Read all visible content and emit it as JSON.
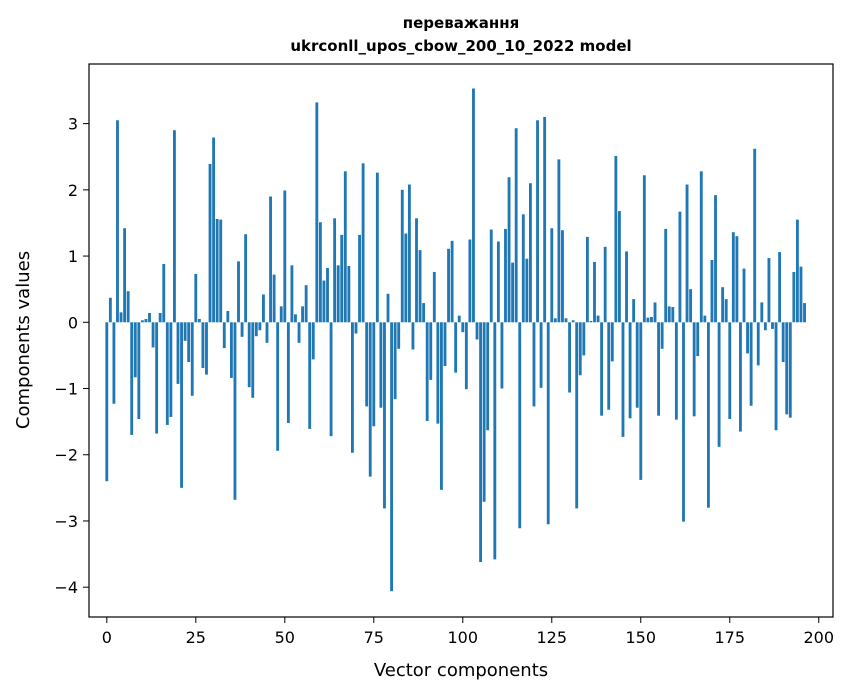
{
  "chart_data": {
    "type": "bar",
    "title_line1": "переважання",
    "title_line2": "ukrconll_upos_cbow_200_10_2022 model",
    "xlabel": "Vector components",
    "ylabel": "Components values",
    "xlim": [
      -5,
      204
    ],
    "ylim": [
      -4.45,
      3.9
    ],
    "xticks": [
      0,
      25,
      50,
      75,
      100,
      125,
      150,
      175,
      200
    ],
    "xtick_labels": [
      "0",
      "25",
      "50",
      "75",
      "100",
      "125",
      "150",
      "175",
      "200"
    ],
    "yticks": [
      -4,
      -3,
      -2,
      -1,
      0,
      1,
      2,
      3
    ],
    "ytick_labels": [
      "−4",
      "−3",
      "−2",
      "−1",
      "0",
      "1",
      "2",
      "3"
    ],
    "bar_color": "#1f77b4",
    "grid": false,
    "values": [
      -2.4,
      0.37,
      -1.23,
      3.05,
      0.15,
      1.42,
      0.47,
      -1.7,
      -0.83,
      -1.46,
      0.03,
      0.05,
      0.14,
      -0.38,
      -1.68,
      0.14,
      0.88,
      -1.55,
      -1.43,
      2.9,
      -0.93,
      -2.5,
      -0.28,
      -0.6,
      -1.11,
      0.73,
      0.05,
      -0.69,
      -0.79,
      2.39,
      2.79,
      1.56,
      1.55,
      -0.39,
      0.17,
      -0.84,
      -2.68,
      0.92,
      -0.22,
      1.33,
      -0.98,
      -1.14,
      -0.21,
      -0.12,
      0.42,
      -0.31,
      1.9,
      0.72,
      -1.94,
      0.24,
      1.99,
      -1.52,
      0.86,
      0.12,
      -0.31,
      0.24,
      0.56,
      -1.61,
      -0.56,
      3.32,
      1.51,
      0.63,
      0.82,
      -1.72,
      1.57,
      0.86,
      1.32,
      2.28,
      0.85,
      -1.97,
      -0.17,
      1.32,
      2.4,
      -1.27,
      -2.33,
      -1.57,
      2.26,
      -1.29,
      -2.81,
      0.43,
      -4.06,
      -1.16,
      -0.4,
      2.0,
      1.34,
      2.08,
      -0.41,
      1.57,
      1.09,
      0.29,
      -1.49,
      -0.87,
      0.76,
      -1.53,
      -2.53,
      -0.66,
      1.11,
      1.23,
      -0.76,
      0.1,
      -0.15,
      -1.01,
      1.25,
      3.53,
      -0.26,
      -3.62,
      -2.71,
      -1.63,
      1.4,
      -3.58,
      1.22,
      -1.0,
      1.41,
      2.19,
      0.9,
      2.93,
      -3.11,
      1.63,
      0.96,
      2.1,
      -1.27,
      3.05,
      -0.99,
      3.1,
      -3.05,
      1.42,
      0.06,
      2.46,
      1.39,
      0.06,
      -1.06,
      0.03,
      -2.81,
      -0.8,
      -0.5,
      1.29,
      0.02,
      0.91,
      0.1,
      -1.41,
      1.14,
      -1.32,
      -0.59,
      2.51,
      1.68,
      -1.73,
      1.07,
      -1.45,
      0.35,
      -1.29,
      -2.38,
      2.22,
      0.07,
      0.08,
      0.3,
      -1.41,
      -0.4,
      1.41,
      0.24,
      0.23,
      -1.47,
      1.67,
      -3.01,
      2.08,
      0.5,
      -1.42,
      -0.51,
      2.28,
      0.1,
      -2.8,
      0.94,
      1.92,
      -1.88,
      0.53,
      0.35,
      -1.46,
      1.36,
      1.3,
      -1.65,
      0.81,
      -0.47,
      -1.26,
      2.62,
      -0.65,
      0.3,
      -0.12,
      0.97,
      -0.1,
      -1.63,
      1.06,
      -0.6,
      -1.39,
      -1.44,
      0.76,
      1.55,
      0.84,
      0.29
    ]
  }
}
